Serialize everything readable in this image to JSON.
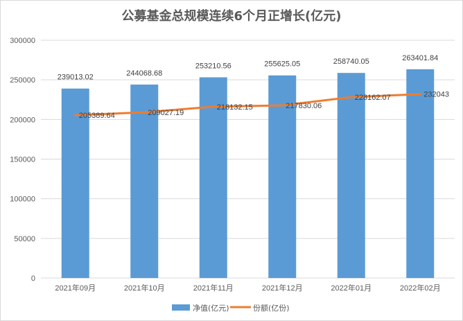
{
  "chart_data": {
    "type": "bar+line",
    "title": "公募基金总规模连续6个月正增长(亿元)",
    "categories": [
      "2021年09月",
      "2021年10月",
      "2021年11月",
      "2021年12月",
      "2022年01月",
      "2022年02月"
    ],
    "series": [
      {
        "name": "净值(亿元)",
        "type": "bar",
        "color": "#5B9BD5",
        "values": [
          239013.02,
          244068.68,
          253210.56,
          255625.05,
          258740.05,
          263401.84
        ],
        "labels": [
          "239013.02",
          "244068.68",
          "253210.56",
          "255625.05",
          "258740.05",
          "263401.84"
        ]
      },
      {
        "name": "份额(亿份)",
        "type": "line",
        "color": "#ED7D31",
        "values": [
          205389.64,
          209027.19,
          216132.15,
          217830.06,
          228162.07,
          232043
        ],
        "labels": [
          "205389.64",
          "209027.19",
          "216132.15",
          "217830.06",
          "228162.07",
          "232043"
        ]
      }
    ],
    "ylim": [
      0,
      300000
    ],
    "yticks": [
      "0",
      "50000",
      "100000",
      "150000",
      "200000",
      "250000",
      "300000"
    ],
    "grid": true,
    "legend": "bottom"
  }
}
